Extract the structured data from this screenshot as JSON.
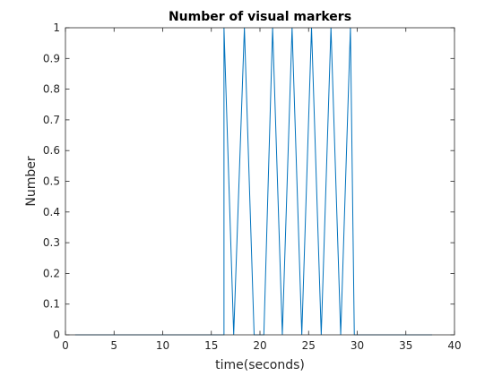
{
  "chart_data": {
    "type": "line",
    "title": "Number of visual markers",
    "xlabel": "time(seconds)",
    "ylabel": "Number",
    "xlim": [
      0,
      40
    ],
    "ylim": [
      0,
      1
    ],
    "xticks": [
      0,
      5,
      10,
      15,
      20,
      25,
      30,
      35,
      40
    ],
    "yticks": [
      0,
      0.1,
      0.2,
      0.3,
      0.4,
      0.5,
      0.6,
      0.7,
      0.8,
      0.9,
      1
    ],
    "grid": false,
    "series": [
      {
        "name": "",
        "color": "#0072BD",
        "x": [
          1.0,
          16.3,
          16.3,
          17.3,
          18.4,
          19.4,
          20.4,
          21.3,
          22.3,
          23.3,
          24.3,
          25.3,
          26.3,
          27.3,
          28.3,
          29.3,
          29.7,
          37.7
        ],
        "y": [
          0,
          0,
          1,
          0,
          1,
          0,
          0,
          1,
          0,
          1,
          0,
          1,
          0,
          1,
          0,
          1,
          0,
          0
        ]
      }
    ]
  }
}
